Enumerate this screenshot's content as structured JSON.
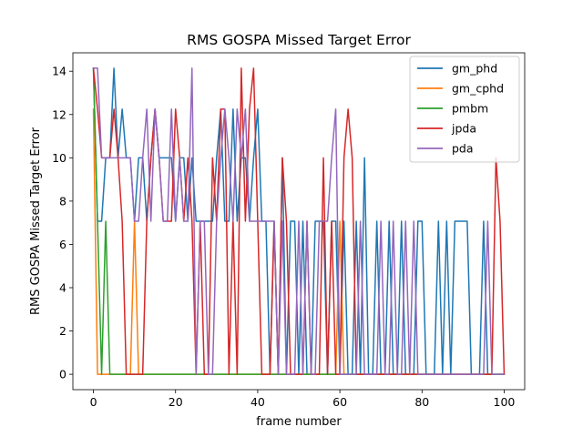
{
  "chart_data": {
    "type": "line",
    "title": "RMS GOSPA Missed Target Error",
    "xlabel": "frame number",
    "ylabel": "RMS GOSPA Missed Target Error",
    "xlim": [
      -5,
      105
    ],
    "ylim": [
      -0.71,
      14.85
    ],
    "xticks": [
      0,
      20,
      40,
      60,
      80,
      100
    ],
    "yticks": [
      0,
      2,
      4,
      6,
      8,
      10,
      12,
      14
    ],
    "grid": false,
    "legend_position": "top-right",
    "series": [
      {
        "name": "gm_phd",
        "color": "#1f77b4",
        "x": [
          0,
          1,
          2,
          3,
          4,
          5,
          6,
          7,
          8,
          9,
          10,
          11,
          12,
          13,
          14,
          15,
          16,
          17,
          18,
          19,
          20,
          21,
          22,
          23,
          24,
          25,
          26,
          27,
          28,
          29,
          30,
          31,
          32,
          33,
          34,
          35,
          36,
          37,
          38,
          39,
          40,
          41,
          42,
          43,
          44,
          45,
          46,
          47,
          48,
          49,
          50,
          51,
          52,
          53,
          54,
          55,
          56,
          57,
          58,
          59,
          60,
          61,
          62,
          63,
          64,
          65,
          66,
          67,
          68,
          69,
          70,
          71,
          72,
          73,
          74,
          75,
          76,
          77,
          78,
          79,
          80,
          81,
          82,
          83,
          84,
          85,
          86,
          87,
          88,
          89,
          90,
          91,
          92,
          93,
          94,
          95,
          96,
          97,
          98,
          99,
          100
        ],
        "y": [
          14.14,
          7.07,
          7.07,
          10,
          10,
          14.14,
          10,
          12.25,
          10,
          10,
          7.07,
          10,
          10,
          7.07,
          10,
          12.25,
          10,
          10,
          10,
          10,
          7.07,
          10,
          10,
          7.07,
          10,
          7.07,
          7.07,
          7.07,
          7.07,
          7.07,
          10,
          12.25,
          7.07,
          7.07,
          12.25,
          7.07,
          10,
          10,
          7.07,
          10,
          12.25,
          7.07,
          7.07,
          0,
          7.07,
          0,
          10,
          0,
          7.07,
          7.07,
          0,
          7.07,
          0,
          0,
          7.07,
          7.07,
          7.07,
          0,
          7.07,
          7.07,
          0,
          7.07,
          0,
          0,
          7.07,
          0,
          10,
          0,
          0,
          7.07,
          0,
          0,
          7.07,
          0,
          0,
          7.07,
          0,
          0,
          0,
          7.07,
          7.07,
          0,
          0,
          0,
          7.07,
          0,
          7.07,
          0,
          7.07,
          7.07,
          7.07,
          7.07,
          0,
          0,
          0,
          7.07,
          0,
          0,
          0,
          0,
          0
        ]
      },
      {
        "name": "gm_cphd",
        "color": "#ff7f0e",
        "x": [
          0,
          1,
          2,
          3,
          4,
          5,
          6,
          7,
          8,
          9,
          10,
          11,
          12,
          13,
          14,
          15,
          16,
          17,
          18,
          19,
          20,
          21,
          22,
          23,
          24,
          25,
          26,
          27,
          28,
          29,
          30,
          31,
          32,
          33,
          34,
          35,
          36,
          37,
          38,
          39,
          40,
          41,
          42,
          43,
          44,
          45,
          46,
          47,
          48,
          49,
          50,
          51,
          52,
          53,
          54,
          55,
          56,
          57,
          58,
          59,
          60,
          61,
          62,
          63,
          64,
          65,
          66,
          67,
          68,
          69,
          70,
          71,
          72,
          73,
          74,
          75,
          76,
          77,
          78,
          79,
          80,
          81,
          82,
          83,
          84,
          85,
          86,
          87,
          88,
          89,
          90,
          91,
          92,
          93,
          94,
          95,
          96,
          97,
          98,
          99,
          100
        ],
        "y": [
          12.25,
          0,
          0,
          0,
          0,
          0,
          0,
          0,
          0,
          0,
          7.07,
          0,
          0,
          0,
          0,
          0,
          0,
          0,
          0,
          0,
          0,
          0,
          0,
          0,
          0,
          0,
          0,
          0,
          0,
          0,
          0,
          0,
          0,
          0,
          0,
          0,
          0,
          0,
          0,
          0,
          0,
          0,
          0,
          0,
          0,
          0,
          0,
          0,
          0,
          0,
          0,
          0,
          0,
          0,
          0,
          0,
          0,
          0,
          0,
          0,
          7.07,
          0,
          0,
          0,
          0,
          0,
          0,
          0,
          0,
          0,
          0,
          0,
          0,
          0,
          0,
          0,
          0,
          0,
          0,
          0,
          0,
          0,
          0,
          0,
          0,
          0,
          0,
          0,
          0,
          0,
          0,
          0,
          0,
          0,
          0,
          0,
          0,
          0,
          0,
          0,
          0
        ]
      },
      {
        "name": "pmbm",
        "color": "#2ca02c",
        "x": [
          0,
          1,
          2,
          3,
          4,
          5,
          6,
          7,
          8,
          9,
          10,
          11,
          12,
          13,
          14,
          15,
          16,
          17,
          18,
          19,
          20,
          21,
          22,
          23,
          24,
          25,
          26,
          27,
          28,
          29,
          30,
          31,
          32,
          33,
          34,
          35,
          36,
          37,
          38,
          39,
          40,
          41,
          42,
          43,
          44,
          45,
          46,
          47,
          48,
          49,
          50,
          51,
          52,
          53,
          54,
          55,
          56,
          57,
          58,
          59,
          60,
          61,
          62,
          63,
          64,
          65,
          66,
          67,
          68,
          69,
          70,
          71,
          72,
          73,
          74,
          75,
          76,
          77,
          78,
          79,
          80,
          81,
          82,
          83,
          84,
          85,
          86,
          87,
          88,
          89,
          90,
          91,
          92,
          93,
          94,
          95,
          96,
          97,
          98,
          99,
          100
        ],
        "y": [
          14.14,
          7.07,
          0,
          7.07,
          0,
          0,
          0,
          0,
          0,
          0,
          0,
          0,
          0,
          0,
          0,
          0,
          0,
          0,
          0,
          0,
          0,
          0,
          0,
          0,
          0,
          0,
          0,
          0,
          0,
          0,
          0,
          0,
          0,
          0,
          0,
          0,
          0,
          0,
          0,
          0,
          0,
          0,
          0,
          0,
          0,
          0,
          0,
          0,
          0,
          0,
          0,
          0,
          0,
          0,
          0,
          0,
          0,
          0,
          0,
          0,
          0,
          0,
          0,
          0,
          0,
          0,
          0,
          0,
          0,
          0,
          0,
          0,
          0,
          0,
          0,
          0,
          0,
          0,
          0,
          0,
          0,
          0,
          0,
          0,
          0,
          0,
          0,
          0,
          0,
          0,
          0,
          0,
          0,
          0,
          0,
          0,
          0,
          0,
          0,
          0,
          0
        ]
      },
      {
        "name": "jpda",
        "color": "#d62728",
        "x": [
          0,
          1,
          2,
          3,
          4,
          5,
          6,
          7,
          8,
          9,
          10,
          11,
          12,
          13,
          14,
          15,
          16,
          17,
          18,
          19,
          20,
          21,
          22,
          23,
          24,
          25,
          26,
          27,
          28,
          29,
          30,
          31,
          32,
          33,
          34,
          35,
          36,
          37,
          38,
          39,
          40,
          41,
          42,
          43,
          44,
          45,
          46,
          47,
          48,
          49,
          50,
          51,
          52,
          53,
          54,
          55,
          56,
          57,
          58,
          59,
          60,
          61,
          62,
          63,
          64,
          65,
          66,
          67,
          68,
          69,
          70,
          71,
          72,
          73,
          74,
          75,
          76,
          77,
          78,
          79,
          80,
          81,
          82,
          83,
          84,
          85,
          86,
          87,
          88,
          89,
          90,
          91,
          92,
          93,
          94,
          95,
          96,
          97,
          98,
          99,
          100
        ],
        "y": [
          14.14,
          12.25,
          10,
          10,
          10,
          12.25,
          10,
          7.07,
          0,
          0,
          0,
          0,
          0,
          7.07,
          10,
          12.25,
          10,
          7.07,
          7.07,
          7.07,
          12.25,
          10,
          7.07,
          10,
          7.07,
          0,
          7.07,
          0,
          0,
          10,
          7.07,
          12.25,
          12.25,
          0,
          7.07,
          0,
          14.14,
          7.07,
          12.25,
          14.14,
          7.07,
          0,
          0,
          0,
          7.07,
          0,
          10,
          7.07,
          0,
          0,
          0,
          0,
          7.07,
          0,
          0,
          0,
          10,
          0,
          7.07,
          0,
          0,
          10,
          12.25,
          10,
          0,
          0,
          0,
          0,
          0,
          0,
          0,
          0,
          0,
          0,
          0,
          0,
          0,
          0,
          0,
          0,
          0,
          0,
          0,
          0,
          0,
          0,
          0,
          0,
          0,
          0,
          0,
          0,
          0,
          0,
          0,
          0,
          0,
          0,
          10,
          7.07,
          0
        ]
      },
      {
        "name": "pda",
        "color": "#9467bd",
        "x": [
          0,
          1,
          2,
          3,
          4,
          5,
          6,
          7,
          8,
          9,
          10,
          11,
          12,
          13,
          14,
          15,
          16,
          17,
          18,
          19,
          20,
          21,
          22,
          23,
          24,
          25,
          26,
          27,
          28,
          29,
          30,
          31,
          32,
          33,
          34,
          35,
          36,
          37,
          38,
          39,
          40,
          41,
          42,
          43,
          44,
          45,
          46,
          47,
          48,
          49,
          50,
          51,
          52,
          53,
          54,
          55,
          56,
          57,
          58,
          59,
          60,
          61,
          62,
          63,
          64,
          65,
          66,
          67,
          68,
          69,
          70,
          71,
          72,
          73,
          74,
          75,
          76,
          77,
          78,
          79,
          80,
          81,
          82,
          83,
          84,
          85,
          86,
          87,
          88,
          89,
          90,
          91,
          92,
          93,
          94,
          95,
          96,
          97,
          98,
          99,
          100
        ],
        "y": [
          14.14,
          14.14,
          10,
          10,
          10,
          10,
          10,
          10,
          10,
          10,
          7.07,
          7.07,
          10,
          12.25,
          7.07,
          12.25,
          10,
          7.07,
          7.07,
          12.25,
          7.07,
          10,
          7.07,
          7.07,
          14.14,
          0,
          7.07,
          7.07,
          0,
          0,
          7.07,
          10,
          12.25,
          10,
          7.07,
          12.25,
          10,
          12.25,
          7.07,
          7.07,
          7.07,
          7.07,
          7.07,
          7.07,
          7.07,
          0,
          7.07,
          0,
          0,
          0,
          7.07,
          0,
          7.07,
          0,
          0,
          7.07,
          7.07,
          7.07,
          10,
          12.25,
          0,
          0,
          0,
          0,
          0,
          7.07,
          0,
          0,
          0,
          0,
          7.07,
          0,
          0,
          7.07,
          0,
          0,
          7.07,
          0,
          7.07,
          0,
          0,
          0,
          0,
          0,
          0,
          0,
          0,
          0,
          0,
          0,
          0,
          0,
          0,
          0,
          0,
          0,
          7.07,
          0,
          0,
          0,
          0
        ]
      }
    ]
  }
}
